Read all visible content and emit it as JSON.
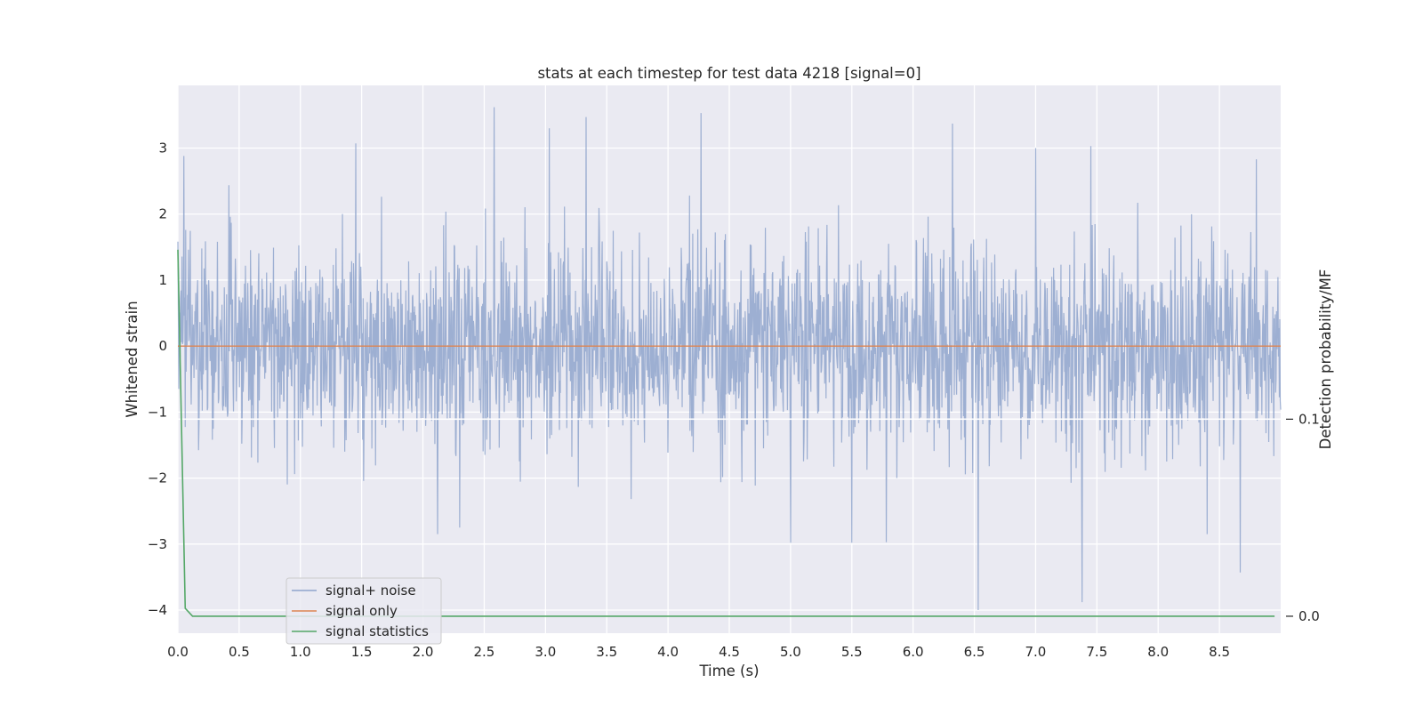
{
  "chart_data": {
    "type": "line",
    "title": "stats at each timestep for test data 4218 [signal=0]",
    "xlabel": "Time (s)",
    "ylabel": "Whitened strain",
    "y2label": "Detection probability/MF",
    "xlim": [
      0.0,
      9.0
    ],
    "ylim": [
      -4.35,
      3.95
    ],
    "y2lim": [
      -0.0086,
      0.2694
    ],
    "xticks": [
      0.0,
      0.5,
      1.0,
      1.5,
      2.0,
      2.5,
      3.0,
      3.5,
      4.0,
      4.5,
      5.0,
      5.5,
      6.0,
      6.5,
      7.0,
      7.5,
      8.0,
      8.5
    ],
    "xtick_labels": [
      "0.0",
      "0.5",
      "1.0",
      "1.5",
      "2.0",
      "2.5",
      "3.0",
      "3.5",
      "4.0",
      "4.5",
      "5.0",
      "5.5",
      "6.0",
      "6.5",
      "7.0",
      "7.5",
      "8.0",
      "8.5"
    ],
    "yticks": [
      -4,
      -3,
      -2,
      -1,
      0,
      1,
      2,
      3
    ],
    "ytick_labels": [
      "−4",
      "−3",
      "−2",
      "−1",
      "0",
      "1",
      "2",
      "3"
    ],
    "y2ticks": [
      0.0,
      0.1
    ],
    "y2tick_labels": [
      "0.0",
      "0.1"
    ],
    "grid": true,
    "legend_position": "lower-left",
    "series": [
      {
        "name": "signal+ noise",
        "axis": "left",
        "color": "#8fa4cc",
        "description": "whitened noise, roughly Gaussian with amplitude about 1",
        "peaks": [
          {
            "x": 2.58,
            "y": 3.62
          },
          {
            "x": 3.33,
            "y": 3.47
          },
          {
            "x": 4.27,
            "y": 3.53
          },
          {
            "x": 6.32,
            "y": 3.37
          },
          {
            "x": 1.45,
            "y": 3.07
          },
          {
            "x": 3.03,
            "y": 3.3
          },
          {
            "x": 7.45,
            "y": 3.03
          },
          {
            "x": 7.0,
            "y": 3.0
          },
          {
            "x": 8.8,
            "y": 2.83
          },
          {
            "x": 0.05,
            "y": 2.88
          }
        ],
        "troughs": [
          {
            "x": 6.53,
            "y": -4.0
          },
          {
            "x": 7.38,
            "y": -3.88
          },
          {
            "x": 8.67,
            "y": -3.43
          },
          {
            "x": 5.0,
            "y": -2.98
          },
          {
            "x": 5.5,
            "y": -2.98
          },
          {
            "x": 5.78,
            "y": -2.97
          },
          {
            "x": 2.12,
            "y": -2.85
          },
          {
            "x": 2.3,
            "y": -2.75
          },
          {
            "x": 8.4,
            "y": -2.85
          }
        ]
      },
      {
        "name": "signal only",
        "axis": "left",
        "color": "#dd8452",
        "x": [
          0.0,
          9.0
        ],
        "y": [
          0.0,
          0.0
        ]
      },
      {
        "name": "signal statistics",
        "axis": "right",
        "color": "#55a868",
        "x": [
          0.0,
          0.06,
          0.12,
          0.5,
          1.0,
          2.0,
          3.0,
          4.0,
          5.0,
          6.0,
          7.0,
          8.0,
          8.95
        ],
        "y": [
          0.186,
          0.004,
          0.0,
          0.0,
          0.0,
          0.0,
          0.0,
          0.0,
          0.0,
          0.0,
          0.0,
          0.0,
          0.0
        ]
      }
    ],
    "horizontal_line": {
      "axis": "right",
      "y": 0.1,
      "color": "#ffffff"
    }
  }
}
